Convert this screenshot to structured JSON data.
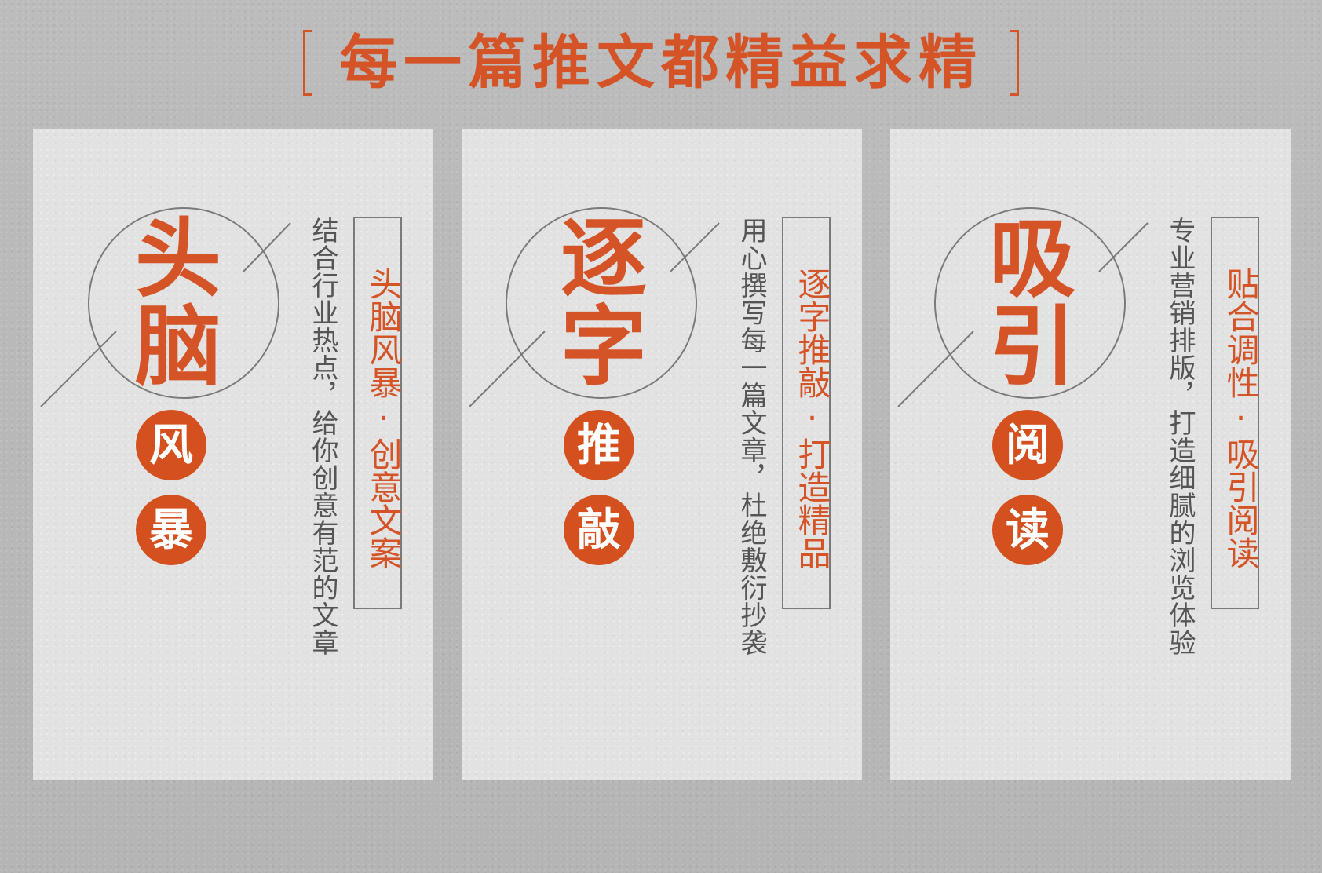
{
  "headline": "每一篇推文都精益求精",
  "colors": {
    "accent": "#d45428",
    "card_bg": "#e2e2e2",
    "page_bg": "#b7b7b7",
    "text_gray": "#555555"
  },
  "cards": [
    {
      "big1": "头",
      "big2": "脑",
      "dot1": "风",
      "dot2": "暴",
      "description": "结合行业热点，给你创意有范的文章",
      "tag": "头脑风暴·创意文案"
    },
    {
      "big1": "逐",
      "big2": "字",
      "dot1": "推",
      "dot2": "敲",
      "description": "用心撰写每一篇文章，杜绝敷衍抄袭",
      "tag": "逐字推敲·打造精品"
    },
    {
      "big1": "吸",
      "big2": "引",
      "dot1": "阅",
      "dot2": "读",
      "description": "专业营销排版，打造细腻的浏览体验",
      "tag": "贴合调性·吸引阅读"
    }
  ]
}
